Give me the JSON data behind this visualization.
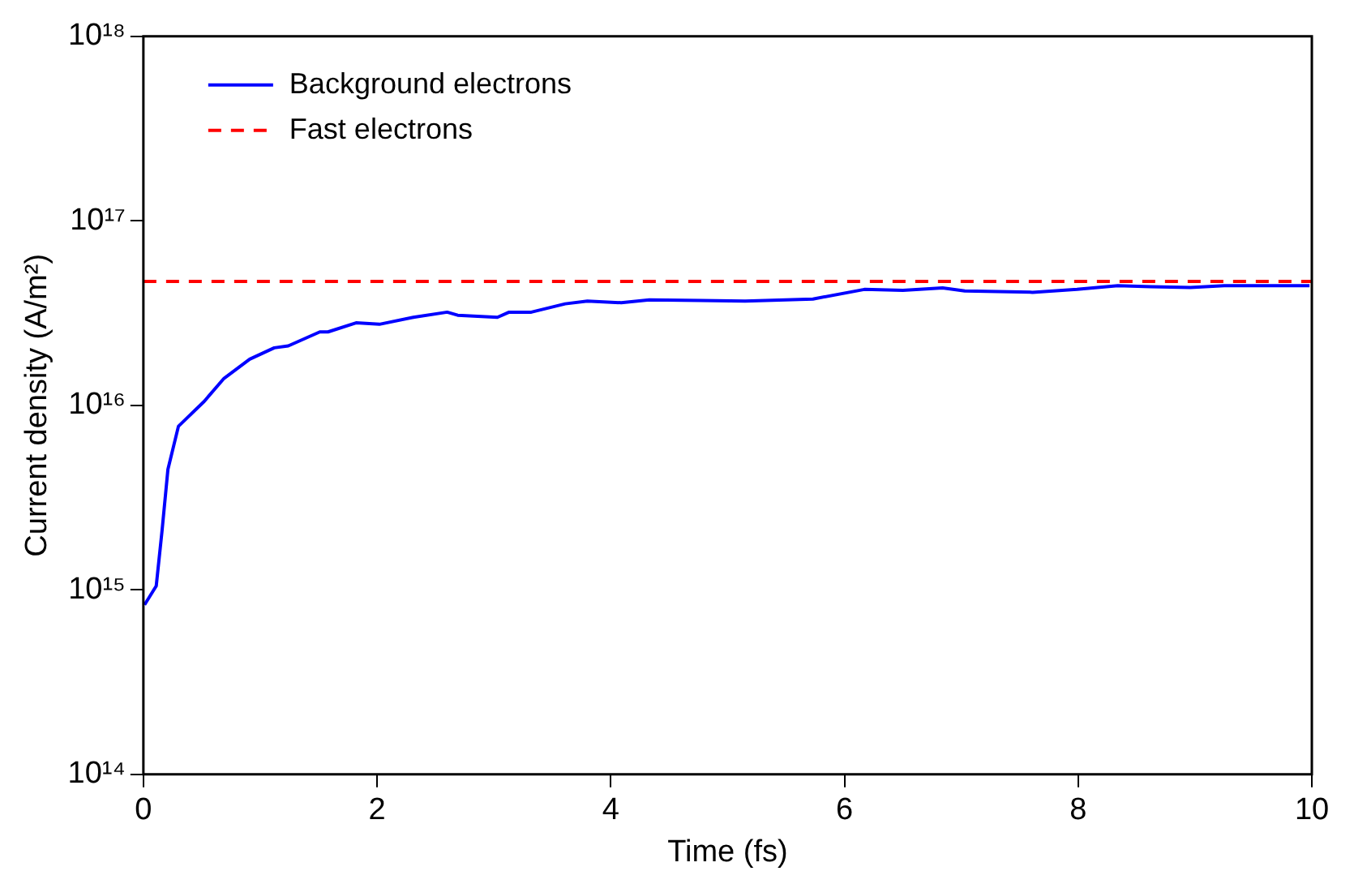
{
  "chart_data": {
    "type": "line",
    "xlabel": "Time (fs)",
    "ylabel": "Current density (A/m²)",
    "log": "y",
    "xlim": [
      0,
      10
    ],
    "xticks": [
      0,
      2,
      4,
      6,
      8,
      10
    ],
    "ylim": [
      100000000000000.0,
      1e+18
    ],
    "yticks": [
      {
        "value": 100000000000000.0,
        "label": "10¹⁴"
      },
      {
        "value": 1000000000000000.0,
        "label": "10¹⁵"
      },
      {
        "value": 1e+16,
        "label": "10¹⁶"
      },
      {
        "value": 1e+17,
        "label": "10¹⁷"
      },
      {
        "value": 1e+18,
        "label": "10¹⁸"
      }
    ],
    "grid": false,
    "legend": "top left",
    "marker": "none",
    "series": [
      {
        "name": "Background electrons",
        "color": "#0000ff",
        "line_style": "solid",
        "x": [
          0.01,
          0.11,
          0.16,
          0.21,
          0.3,
          0.52,
          0.69,
          0.91,
          1.12,
          1.24,
          1.51,
          1.58,
          1.82,
          2.02,
          2.31,
          2.6,
          2.69,
          3.03,
          3.13,
          3.32,
          3.61,
          3.8,
          4.09,
          4.33,
          4.77,
          5.15,
          5.73,
          6.17,
          6.5,
          6.84,
          7.03,
          7.61,
          7.99,
          8.34,
          8.62,
          8.96,
          9.25,
          9.98
        ],
        "values": [
          830000000000000.0,
          1050000000000000.0,
          2100000000000000.0,
          4500000000000000.0,
          7700000000000000.0,
          1.05e+16,
          1.4e+16,
          1.78e+16,
          2.05e+16,
          2.1e+16,
          2.5e+16,
          2.5e+16,
          2.8e+16,
          2.75e+16,
          3e+16,
          3.2e+16,
          3.08e+16,
          3e+16,
          3.2e+16,
          3.2e+16,
          3.55e+16,
          3.67e+16,
          3.6e+16,
          3.73e+16,
          3.7e+16,
          3.67e+16,
          3.77e+16,
          4.25e+16,
          4.2e+16,
          4.33e+16,
          4.17e+16,
          4.1e+16,
          4.25e+16,
          4.45e+16,
          4.4e+16,
          4.35e+16,
          4.45e+16,
          4.45e+16
        ]
      },
      {
        "name": "Fast electrons",
        "color": "#ff0000",
        "line_style": "dashed",
        "x": [
          0,
          10
        ],
        "values": [
          4.7e+16,
          4.7e+16
        ]
      }
    ]
  }
}
